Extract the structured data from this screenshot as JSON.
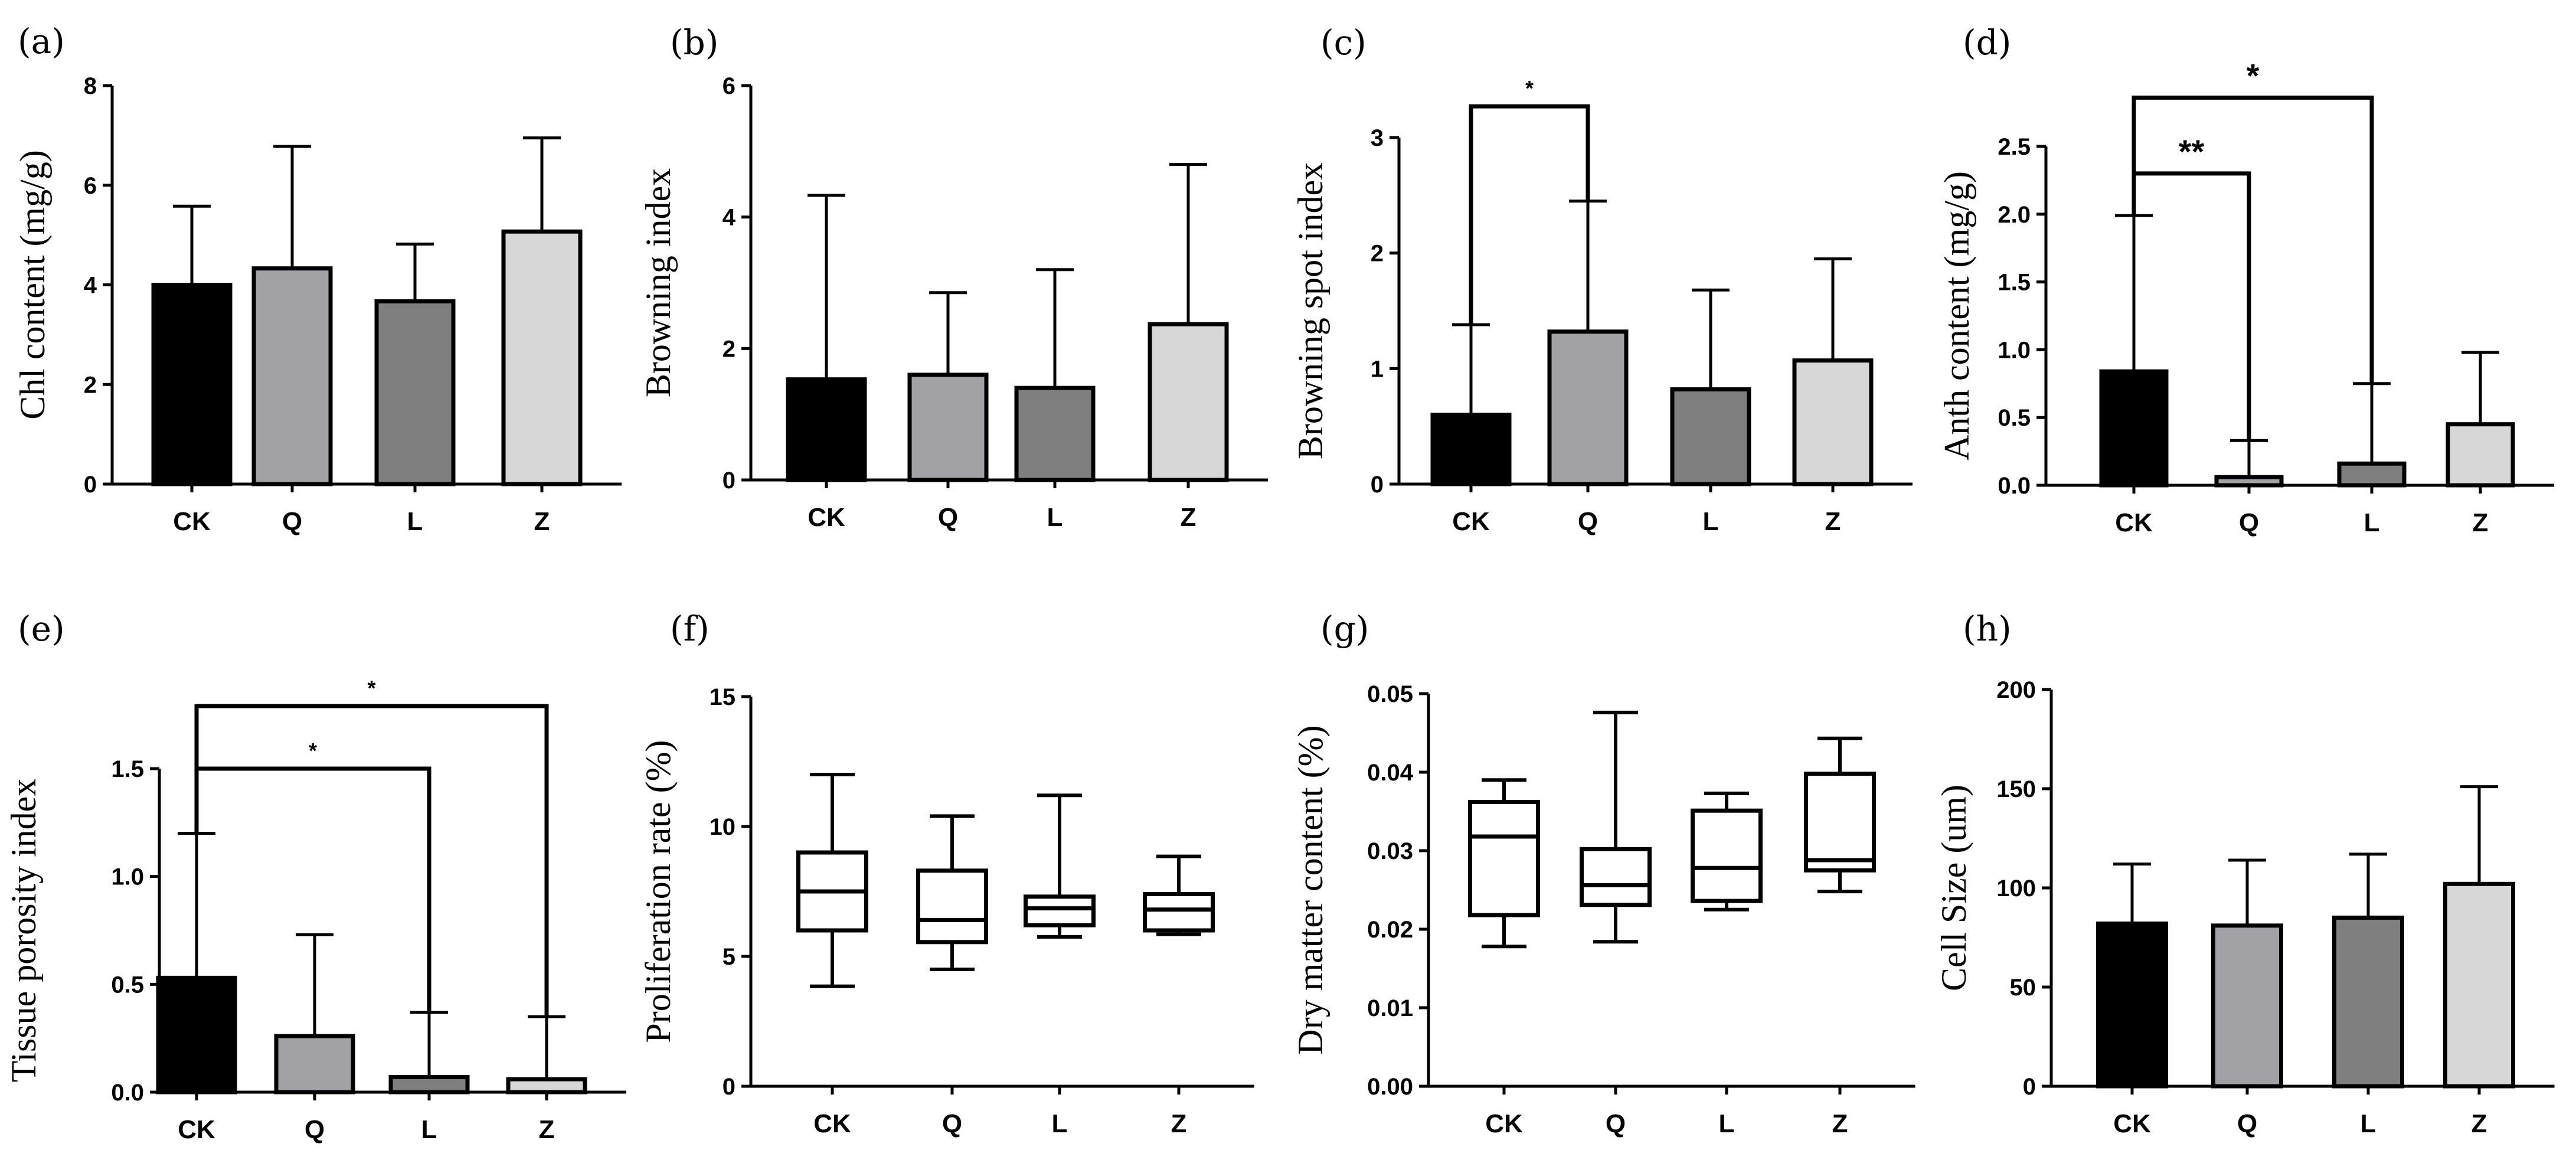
{
  "colors": {
    "CK": "#000000",
    "Q": "#a2a2a6",
    "L": "#7f7f7f",
    "Z": "#d7d7d7",
    "box": "#ffffff",
    "line": "#000000"
  },
  "chart_data": [
    {
      "label": "(a)",
      "type": "bar",
      "ylabel": "Chl content (mg/g)",
      "categories": [
        "CK",
        "Q",
        "L",
        "Z"
      ],
      "values": [
        4.0,
        4.33,
        3.67,
        5.07
      ],
      "errors": [
        1.58,
        2.45,
        1.15,
        1.88
      ],
      "ylim": [
        0,
        8
      ],
      "yticks": [
        0,
        2,
        4,
        6,
        8
      ],
      "tick_labels": [
        "0",
        "2",
        "4",
        "6",
        "8"
      ],
      "significance": []
    },
    {
      "label": "(b)",
      "type": "bar",
      "ylabel": "Browning index",
      "categories": [
        "CK",
        "Q",
        "L",
        "Z"
      ],
      "values": [
        1.53,
        1.6,
        1.4,
        2.37
      ],
      "errors": [
        2.8,
        1.25,
        1.8,
        2.43
      ],
      "ylim": [
        0,
        6
      ],
      "yticks": [
        0,
        2,
        4,
        6
      ],
      "tick_labels": [
        "0",
        "2",
        "4",
        "6"
      ],
      "significance": []
    },
    {
      "label": "(c)",
      "type": "bar",
      "ylabel": "Browning spot index",
      "categories": [
        "CK",
        "Q",
        "L",
        "Z"
      ],
      "values": [
        0.6,
        1.32,
        0.82,
        1.07
      ],
      "errors": [
        0.78,
        1.13,
        0.86,
        0.88
      ],
      "ylim": [
        0,
        3
      ],
      "yticks": [
        0,
        1,
        2,
        3
      ],
      "tick_labels": [
        "0",
        "1",
        "2",
        "3"
      ],
      "significance": [
        {
          "from": 0,
          "to": 1,
          "level": 3.27,
          "label": "*"
        }
      ]
    },
    {
      "label": "(d)",
      "type": "bar",
      "ylabel": "Anth content (mg/g)",
      "categories": [
        "CK",
        "Q",
        "L",
        "Z"
      ],
      "values": [
        0.84,
        0.06,
        0.16,
        0.45
      ],
      "errors": [
        1.15,
        0.27,
        0.59,
        0.53
      ],
      "ylim": [
        0,
        2.5
      ],
      "yticks": [
        0,
        0.5,
        1.0,
        1.5,
        2.0,
        2.5
      ],
      "tick_labels": [
        "0.0",
        "0.5",
        "1.0",
        "1.5",
        "2.0",
        "2.5"
      ],
      "significance": [
        {
          "from": 0,
          "to": 2,
          "level": 2.86,
          "label": "*"
        },
        {
          "from": 0,
          "to": 1,
          "level": 2.3,
          "label": "**"
        }
      ]
    },
    {
      "label": "(e)",
      "type": "bar",
      "ylabel": "Tissue porosity index",
      "categories": [
        "CK",
        "Q",
        "L",
        "Z"
      ],
      "values": [
        0.53,
        0.26,
        0.07,
        0.06
      ],
      "errors": [
        0.67,
        0.47,
        0.3,
        0.29
      ],
      "ylim": [
        0,
        1.5
      ],
      "yticks": [
        0,
        0.5,
        1.0,
        1.5
      ],
      "tick_labels": [
        "0.0",
        "0.5",
        "1.0",
        "1.5"
      ],
      "significance": [
        {
          "from": 0,
          "to": 3,
          "level": 1.79,
          "label": "*"
        },
        {
          "from": 0,
          "to": 2,
          "level": 1.5,
          "label": "*"
        }
      ]
    },
    {
      "label": "(f)",
      "type": "box",
      "ylabel": "Proliferation rate (%)",
      "categories": [
        "CK",
        "Q",
        "L",
        "Z"
      ],
      "boxes": [
        {
          "min": 3.85,
          "q1": 6.0,
          "median": 7.5,
          "q3": 9.0,
          "max": 12.0
        },
        {
          "min": 4.5,
          "q1": 5.55,
          "median": 6.4,
          "q3": 8.3,
          "max": 10.4
        },
        {
          "min": 5.75,
          "q1": 6.2,
          "median": 6.85,
          "q3": 7.3,
          "max": 11.2
        },
        {
          "min": 5.85,
          "q1": 6.0,
          "median": 6.8,
          "q3": 7.4,
          "max": 8.85
        }
      ],
      "ylim": [
        0,
        15
      ],
      "yticks": [
        0,
        5,
        10,
        15
      ],
      "tick_labels": [
        "0",
        "5",
        "10",
        "15"
      ],
      "significance": []
    },
    {
      "label": "(g)",
      "type": "box",
      "ylabel": "Dry matter content (%)",
      "categories": [
        "CK",
        "Q",
        "L",
        "Z"
      ],
      "boxes": [
        {
          "min": 0.0178,
          "q1": 0.0218,
          "median": 0.0318,
          "q3": 0.0362,
          "max": 0.039
        },
        {
          "min": 0.0184,
          "q1": 0.0231,
          "median": 0.0256,
          "q3": 0.0302,
          "max": 0.0476
        },
        {
          "min": 0.0225,
          "q1": 0.0236,
          "median": 0.0278,
          "q3": 0.0351,
          "max": 0.0373
        },
        {
          "min": 0.0248,
          "q1": 0.0275,
          "median": 0.0288,
          "q3": 0.0398,
          "max": 0.0443
        }
      ],
      "ylim": [
        0,
        0.05
      ],
      "yticks": [
        0,
        0.01,
        0.02,
        0.03,
        0.04,
        0.05
      ],
      "tick_labels": [
        "0.00",
        "0.01",
        "0.02",
        "0.03",
        "0.04",
        "0.05"
      ],
      "significance": []
    },
    {
      "label": "(h)",
      "type": "bar",
      "ylabel": "Cell Size (um)",
      "categories": [
        "CK",
        "Q",
        "L",
        "Z"
      ],
      "values": [
        82,
        81,
        85,
        102
      ],
      "errors": [
        30,
        33,
        32,
        49
      ],
      "ylim": [
        0,
        200
      ],
      "yticks": [
        0,
        50,
        100,
        150,
        200
      ],
      "tick_labels": [
        "0",
        "50",
        "100",
        "150",
        "200"
      ],
      "significance": []
    }
  ]
}
